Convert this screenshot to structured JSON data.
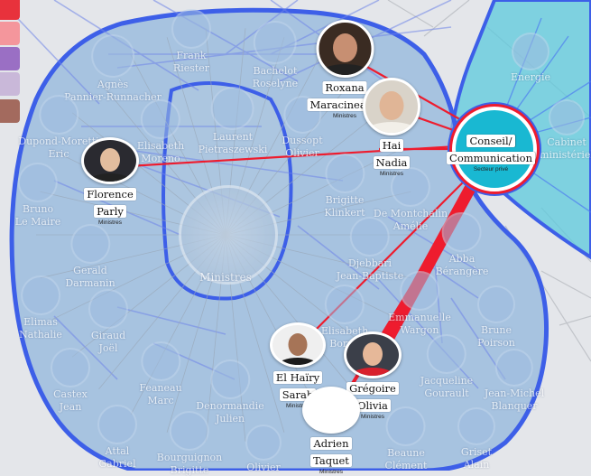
{
  "legend_colors": [
    "#e8323c",
    "#f4969c",
    "#9a6fc4",
    "#c9b8d9",
    "#a36a5e"
  ],
  "colors": {
    "blue_hull_stroke": "#3d5fe8",
    "blue_hull_fill": "#8fb6dc",
    "cyan_hull_fill": "#5cc9dc",
    "red_edge": "#ee1c2e",
    "hub_fill": "#19b8d2",
    "ministres_hub_fill": "#b8cbe0"
  },
  "nodes": [
    {
      "id": "maracineanu",
      "first": "Roxana",
      "last": "Maracineanu",
      "caption": "Ministres",
      "photo_bg": "#3a2b22",
      "skin": "#c78f72"
    },
    {
      "id": "nadia",
      "first": "Hai",
      "last": "Nadia",
      "caption": "Ministres",
      "photo_bg": "#d9d3c9",
      "skin": "#e0b596"
    },
    {
      "id": "parly",
      "first": "Florence",
      "last": "Parly",
      "caption": "Ministres",
      "photo_bg": "#2a2a30",
      "skin": "#e2bd9e"
    },
    {
      "id": "elhairy",
      "first": "El Haïry",
      "last": "Sarah",
      "caption": "Ministres",
      "photo_bg": "#efefef",
      "skin": "#a67457"
    },
    {
      "id": "gregoire",
      "first": "Grégoire",
      "last": "Olivia",
      "caption": "Ministres",
      "photo_bg": "#3b3f49",
      "skin": "#e6b899"
    },
    {
      "id": "taquet",
      "first": "Adrien",
      "last": "Taquet",
      "caption": "Ministres",
      "photo_bg": "#ffffff",
      "skin": "#ffffff"
    }
  ],
  "hub": {
    "title_line1": "Conseil/",
    "title_line2": "Communication",
    "caption": "Secteur privé"
  },
  "ministres_hub": {
    "label": "Ministres"
  },
  "ghosts": [
    {
      "id": "riester",
      "first": "Frank",
      "last": "Riester"
    },
    {
      "id": "agnes",
      "first": "Agnès",
      "last": "Pannier-Runnacher"
    },
    {
      "id": "bachelot",
      "first": "Bachelot",
      "last": "Roselyne"
    },
    {
      "id": "energie",
      "first": "Energie",
      "last": ""
    },
    {
      "id": "pietraszewski",
      "first": "Laurent",
      "last": "Pietraszewski"
    },
    {
      "id": "dussopt",
      "first": "Dussopt",
      "last": "Olivier"
    },
    {
      "id": "dupond",
      "first": "Dupond-Moretti",
      "last": "Eric"
    },
    {
      "id": "moreno",
      "first": "Elisabeth",
      "last": "Moreno"
    },
    {
      "id": "cabinet",
      "first": "Cabinet",
      "last": "ministériel"
    },
    {
      "id": "klinkert",
      "first": "Brigitte",
      "last": "Klinkert"
    },
    {
      "id": "demontchalin",
      "first": "De Montchalin",
      "last": "Amélie"
    },
    {
      "id": "lemaire",
      "first": "Bruno",
      "last": "Le Maire"
    },
    {
      "id": "djebbari",
      "first": "Djebbari",
      "last": "Jean-Baptiste"
    },
    {
      "id": "abba",
      "first": "Abba",
      "last": "Bérangère"
    },
    {
      "id": "darmanin",
      "first": "Gerald",
      "last": "Darmanin"
    },
    {
      "id": "elimas",
      "first": "Elimas",
      "last": "Nathalie"
    },
    {
      "id": "wargon",
      "first": "Emmanuelle",
      "last": "Wargon"
    },
    {
      "id": "borne",
      "first": "Elisabeth",
      "last": "Borne"
    },
    {
      "id": "poirson",
      "first": "Brune",
      "last": "Poirson"
    },
    {
      "id": "giraud",
      "first": "Giraud",
      "last": "Joël"
    },
    {
      "id": "castex",
      "first": "Castex",
      "last": "Jean"
    },
    {
      "id": "feaneau",
      "first": "Feaneau",
      "last": "Marc"
    },
    {
      "id": "denormandie",
      "first": "Denormandie",
      "last": "Julien"
    },
    {
      "id": "gourault",
      "first": "Jacqueline",
      "last": "Gourault"
    },
    {
      "id": "blanquer",
      "first": "Jean-Michel",
      "last": "Blanquer"
    },
    {
      "id": "attal",
      "first": "Attal",
      "last": "Gabriel"
    },
    {
      "id": "bourguignon",
      "first": "Bourguignon",
      "last": "Brigitte"
    },
    {
      "id": "olivier",
      "first": "Olivier",
      "last": ""
    },
    {
      "id": "clement",
      "first": "Beaune",
      "last": "Clément"
    },
    {
      "id": "griset",
      "first": "Griset",
      "last": "Alain"
    }
  ]
}
